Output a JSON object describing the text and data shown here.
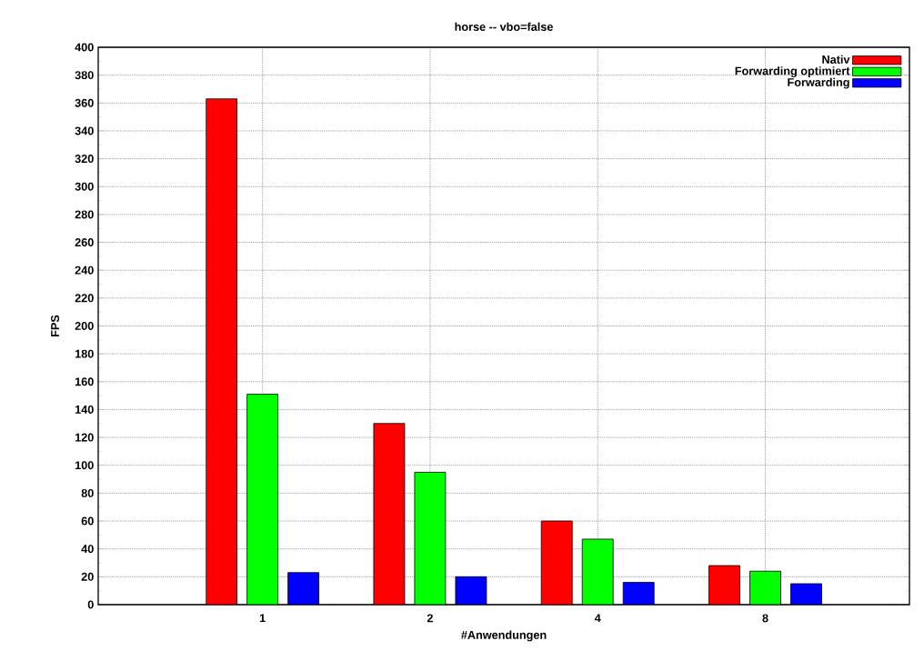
{
  "chart_data": {
    "type": "bar",
    "title": "horse -- vbo=false",
    "xlabel": "#Anwendungen",
    "ylabel": "FPS",
    "categories": [
      "1",
      "2",
      "4",
      "8"
    ],
    "series": [
      {
        "name": "Nativ",
        "color": "#ff0000",
        "values": [
          363,
          130,
          60,
          28
        ]
      },
      {
        "name": "Forwarding optimiert",
        "color": "#00ff00",
        "values": [
          151,
          95,
          47,
          24
        ]
      },
      {
        "name": "Forwarding",
        "color": "#0000ff",
        "values": [
          23,
          20,
          16,
          15
        ]
      }
    ],
    "ylim": [
      0,
      400
    ],
    "yticks": [
      0,
      20,
      40,
      60,
      80,
      100,
      120,
      140,
      160,
      180,
      200,
      220,
      240,
      260,
      280,
      300,
      320,
      340,
      360,
      380,
      400
    ],
    "grid": true,
    "legend": "top right"
  }
}
